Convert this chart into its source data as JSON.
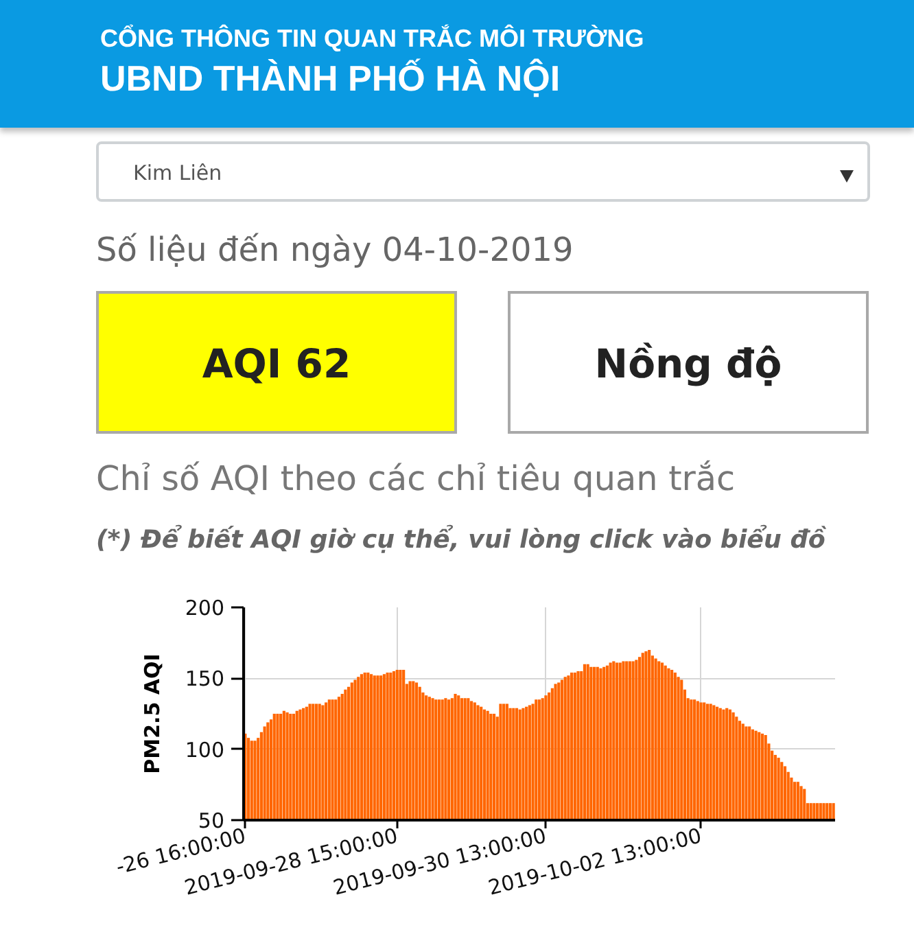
{
  "chart_data": {
    "type": "bar",
    "title": "Chỉ số AQI theo các chỉ tiêu quan trắc",
    "subtitle": "(*) Để biết AQI giờ cụ thể, vui lòng click vào biểu đồ",
    "annotations": [
      "CỔNG THÔNG TIN QUAN TRẮC MÔI TRƯỜNG",
      "UBND THÀNH PHỐ HÀ NỘI",
      "Kim Liên",
      "Số liệu đến ngày 04-10-2019",
      "AQI 62",
      "Nồng độ"
    ],
    "ylabel": "PM2.5 AQI",
    "categories": [
      "-26 16:00:00",
      null,
      null,
      null,
      null,
      null,
      null,
      null,
      null,
      null,
      null,
      null,
      null,
      null,
      null,
      null,
      null,
      null,
      null,
      null,
      null,
      null,
      null,
      null,
      null,
      null,
      null,
      null,
      null,
      null,
      null,
      null,
      null,
      null,
      null,
      null,
      null,
      null,
      null,
      null,
      null,
      null,
      null,
      null,
      null,
      null,
      null,
      "2019-09-28 15:00:00",
      null,
      null,
      null,
      null,
      null,
      null,
      null,
      null,
      null,
      null,
      null,
      null,
      null,
      null,
      null,
      null,
      null,
      null,
      null,
      null,
      null,
      null,
      null,
      null,
      null,
      null,
      null,
      null,
      null,
      null,
      null,
      null,
      null,
      null,
      null,
      null,
      null,
      null,
      null,
      null,
      null,
      null,
      null,
      null,
      null,
      "2019-09-30 13:00:00",
      null,
      null,
      null,
      null,
      null,
      null,
      null,
      null,
      null,
      null,
      null,
      null,
      null,
      null,
      null,
      null,
      null,
      null,
      null,
      null,
      null,
      null,
      null,
      null,
      null,
      null,
      null,
      null,
      null,
      null,
      null,
      null,
      null,
      null,
      null,
      null,
      null,
      null,
      null,
      null,
      null,
      null,
      null,
      null,
      null,
      null,
      null,
      "2019-10-02 13:00:00",
      null,
      null,
      null,
      null,
      null,
      null,
      null,
      null,
      null,
      null,
      null,
      null,
      null,
      null,
      null,
      null,
      null,
      null,
      null,
      null,
      null,
      null,
      null,
      null,
      null,
      null,
      null,
      null,
      null,
      null,
      null,
      null,
      null,
      null,
      null,
      null,
      null,
      null,
      null,
      null,
      null
    ],
    "values": [
      111,
      108,
      106,
      106,
      108,
      112,
      116,
      119,
      121,
      125,
      125,
      125,
      127,
      126,
      125,
      125,
      127,
      128,
      129,
      130,
      132,
      132,
      132,
      132,
      131,
      133,
      135,
      135,
      135,
      137,
      139,
      142,
      144,
      147,
      149,
      151,
      153,
      154,
      154,
      153,
      152,
      152,
      152,
      153,
      154,
      154,
      155,
      156,
      156,
      156,
      146,
      148,
      148,
      147,
      144,
      140,
      138,
      137,
      136,
      135,
      135,
      135,
      136,
      135,
      136,
      139,
      138,
      136,
      136,
      136,
      134,
      133,
      131,
      130,
      128,
      127,
      125,
      125,
      123,
      132,
      132,
      132,
      129,
      129,
      129,
      128,
      129,
      130,
      131,
      132,
      135,
      135,
      136,
      138,
      140,
      143,
      146,
      147,
      149,
      151,
      152,
      154,
      154,
      155,
      155,
      160,
      160,
      158,
      158,
      158,
      157,
      158,
      159,
      161,
      162,
      161,
      161,
      162,
      162,
      162,
      162,
      163,
      165,
      168,
      169,
      170,
      166,
      164,
      162,
      161,
      159,
      157,
      156,
      154,
      151,
      149,
      142,
      136,
      135,
      135,
      134,
      133,
      133,
      132,
      132,
      131,
      130,
      129,
      128,
      129,
      128,
      126,
      123,
      120,
      118,
      116,
      116,
      114,
      113,
      112,
      111,
      110,
      104,
      99,
      96,
      94,
      91,
      88,
      84,
      80,
      77,
      77,
      74,
      72,
      62,
      62,
      62,
      62,
      62,
      62,
      62,
      62,
      62
    ],
    "color": "#ff6600",
    "ylim": [
      50,
      200
    ],
    "yticks": [
      50,
      100,
      150,
      200
    ],
    "grid": true
  }
}
